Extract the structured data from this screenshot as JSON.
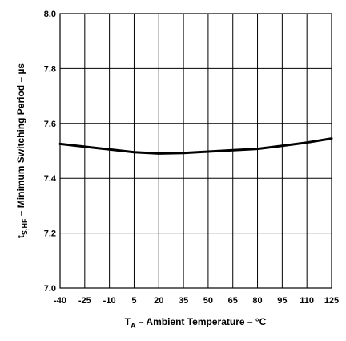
{
  "chart_data": {
    "type": "line",
    "x": [
      -40,
      -25,
      -10,
      5,
      20,
      35,
      50,
      65,
      80,
      95,
      110,
      125
    ],
    "x_tick_labels": [
      "-40",
      "-25",
      "-10",
      "5",
      "20",
      "35",
      "50",
      "65",
      "80",
      "95",
      "110",
      "125"
    ],
    "xlim": [
      -40,
      125
    ],
    "xlabel": {
      "main": "T",
      "sub": "A",
      "rest": " – Ambient Temperature – °C"
    },
    "y_ticks": [
      7.0,
      7.2,
      7.4,
      7.6,
      7.8,
      8.0
    ],
    "y_tick_labels": [
      "7.0",
      "7.2",
      "7.4",
      "7.6",
      "7.8",
      "8.0"
    ],
    "ylim": [
      7.0,
      8.0
    ],
    "ylabel": {
      "main": "t",
      "sub": "S,HF",
      "rest": " – Minimum Switching Period – µs"
    },
    "grid": true,
    "series": [
      {
        "x": [
          -40,
          -25,
          -10,
          5,
          20,
          35,
          50,
          65,
          80,
          95,
          110,
          125
        ],
        "values": [
          7.525,
          7.515,
          7.505,
          7.495,
          7.49,
          7.492,
          7.497,
          7.502,
          7.507,
          7.518,
          7.53,
          7.545
        ]
      }
    ]
  }
}
